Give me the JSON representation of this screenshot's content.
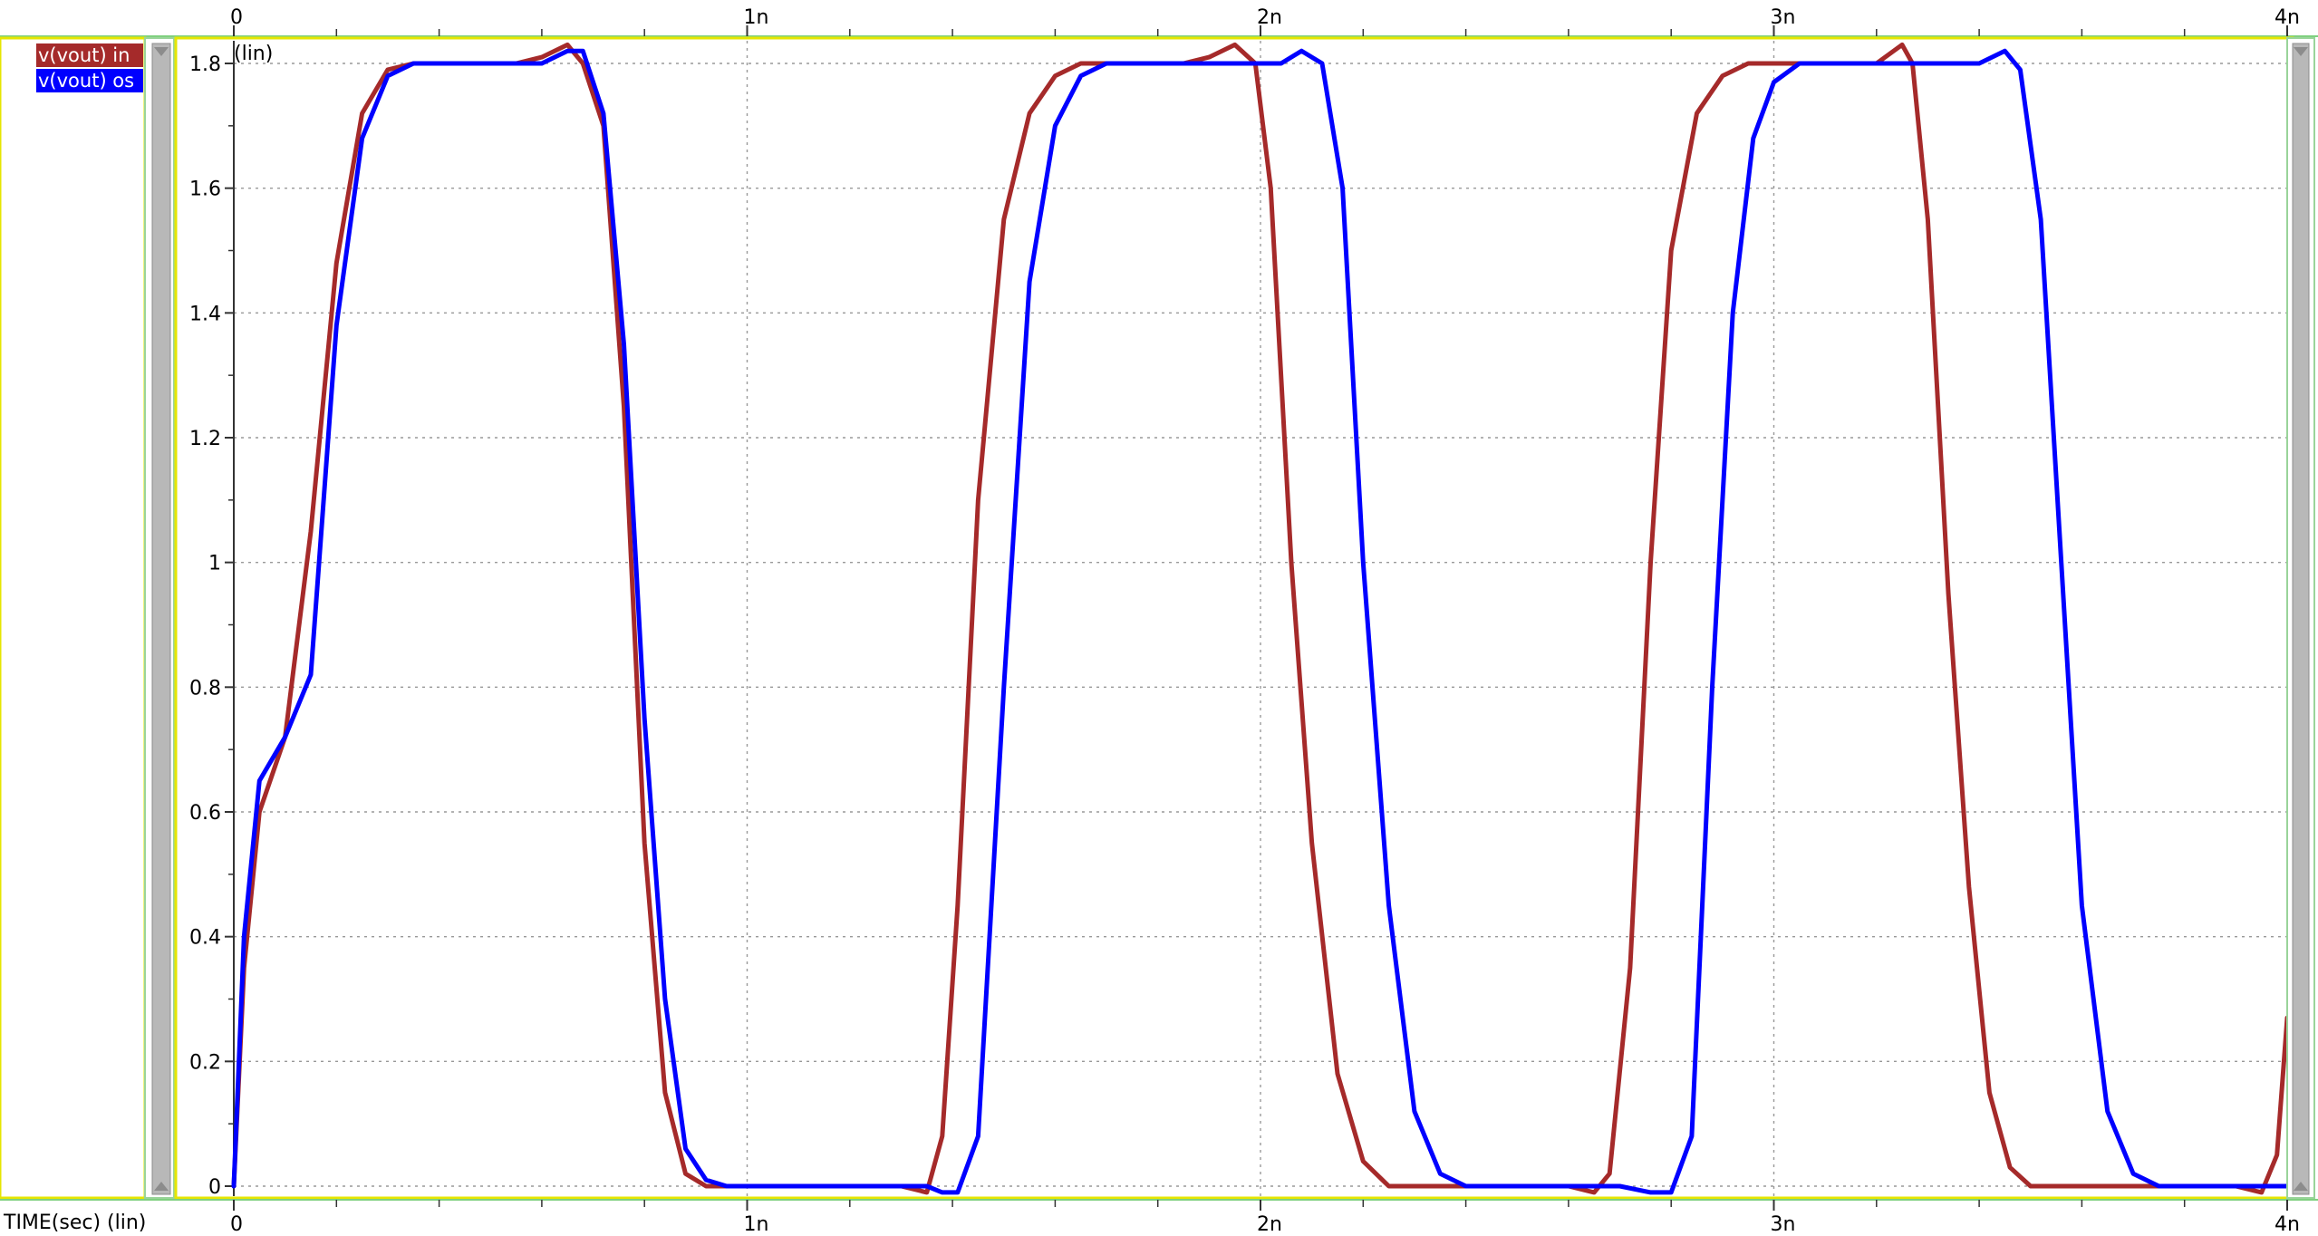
{
  "chart_data": {
    "type": "line",
    "title": "",
    "x_axis_label": "TIME(sec) (lin)",
    "y_axis_label": "(lin)",
    "x_tick_labels": [
      "0",
      "1n",
      "2n",
      "3n",
      "4n"
    ],
    "x_ticks": [
      0,
      1,
      2,
      3,
      4
    ],
    "x_unit": "ns",
    "y_tick_labels": [
      "0",
      "0.2",
      "0.4",
      "0.6",
      "0.8",
      "1",
      "1.2",
      "1.4",
      "1.6",
      "1.8"
    ],
    "y_ticks": [
      0,
      0.2,
      0.4,
      0.6,
      0.8,
      1.0,
      1.2,
      1.4,
      1.6,
      1.8
    ],
    "xlim": [
      -0.01,
      4.02
    ],
    "ylim": [
      -0.03,
      1.86
    ],
    "grid": true,
    "legend_position": "top-left panel",
    "series": [
      {
        "name": "v(vout) in",
        "color": "#a52a2a",
        "x": [
          0,
          0.02,
          0.05,
          0.1,
          0.15,
          0.2,
          0.25,
          0.3,
          0.35,
          0.4,
          0.45,
          0.5,
          0.55,
          0.6,
          0.65,
          0.68,
          0.72,
          0.76,
          0.8,
          0.84,
          0.88,
          0.92,
          0.96,
          1.0,
          1.1,
          1.2,
          1.3,
          1.35,
          1.38,
          1.41,
          1.45,
          1.5,
          1.55,
          1.6,
          1.65,
          1.7,
          1.75,
          1.8,
          1.85,
          1.9,
          1.95,
          1.99,
          2.02,
          2.06,
          2.1,
          2.15,
          2.2,
          2.25,
          2.3,
          2.35,
          2.4,
          2.5,
          2.6,
          2.65,
          2.68,
          2.72,
          2.76,
          2.8,
          2.85,
          2.9,
          2.95,
          3.0,
          3.05,
          3.1,
          3.15,
          3.2,
          3.25,
          3.27,
          3.3,
          3.34,
          3.38,
          3.42,
          3.46,
          3.5,
          3.55,
          3.6,
          3.7,
          3.8,
          3.9,
          3.95,
          3.98,
          4.0
        ],
        "values": [
          0,
          0.35,
          0.6,
          0.72,
          1.05,
          1.48,
          1.72,
          1.79,
          1.8,
          1.8,
          1.8,
          1.8,
          1.8,
          1.81,
          1.83,
          1.8,
          1.7,
          1.25,
          0.55,
          0.15,
          0.02,
          0.0,
          0.0,
          0.0,
          0.0,
          0.0,
          0.0,
          -0.01,
          0.08,
          0.45,
          1.1,
          1.55,
          1.72,
          1.78,
          1.8,
          1.8,
          1.8,
          1.8,
          1.8,
          1.81,
          1.83,
          1.8,
          1.6,
          1.0,
          0.55,
          0.18,
          0.04,
          0.0,
          0.0,
          0.0,
          0.0,
          0.0,
          0.0,
          -0.01,
          0.02,
          0.35,
          1.0,
          1.5,
          1.72,
          1.78,
          1.8,
          1.8,
          1.8,
          1.8,
          1.8,
          1.8,
          1.83,
          1.8,
          1.55,
          0.95,
          0.48,
          0.15,
          0.03,
          0.0,
          0.0,
          0.0,
          0.0,
          0.0,
          0.0,
          -0.01,
          0.05,
          0.27
        ]
      },
      {
        "name": "v(vout) os",
        "color": "#0000ff",
        "x": [
          0,
          0.02,
          0.05,
          0.1,
          0.15,
          0.2,
          0.25,
          0.3,
          0.35,
          0.4,
          0.45,
          0.5,
          0.55,
          0.6,
          0.65,
          0.68,
          0.72,
          0.76,
          0.8,
          0.84,
          0.88,
          0.92,
          0.96,
          1.0,
          1.1,
          1.2,
          1.3,
          1.35,
          1.38,
          1.41,
          1.45,
          1.5,
          1.55,
          1.6,
          1.65,
          1.7,
          1.75,
          1.8,
          1.85,
          1.9,
          1.95,
          2.0,
          2.04,
          2.08,
          2.12,
          2.16,
          2.2,
          2.25,
          2.3,
          2.35,
          2.4,
          2.5,
          2.6,
          2.7,
          2.76,
          2.8,
          2.84,
          2.88,
          2.92,
          2.96,
          3.0,
          3.05,
          3.1,
          3.15,
          3.2,
          3.25,
          3.3,
          3.35,
          3.4,
          3.45,
          3.48,
          3.52,
          3.56,
          3.6,
          3.65,
          3.7,
          3.75,
          3.8,
          3.85,
          3.9,
          4.0
        ],
        "values": [
          0,
          0.4,
          0.65,
          0.72,
          0.82,
          1.38,
          1.68,
          1.78,
          1.8,
          1.8,
          1.8,
          1.8,
          1.8,
          1.8,
          1.82,
          1.82,
          1.72,
          1.35,
          0.75,
          0.3,
          0.06,
          0.01,
          0.0,
          0.0,
          0.0,
          0.0,
          0.0,
          0.0,
          -0.01,
          -0.01,
          0.08,
          0.8,
          1.45,
          1.7,
          1.78,
          1.8,
          1.8,
          1.8,
          1.8,
          1.8,
          1.8,
          1.8,
          1.8,
          1.82,
          1.8,
          1.6,
          1.0,
          0.45,
          0.12,
          0.02,
          0.0,
          0.0,
          0.0,
          0.0,
          -0.01,
          -0.01,
          0.08,
          0.8,
          1.4,
          1.68,
          1.77,
          1.8,
          1.8,
          1.8,
          1.8,
          1.8,
          1.8,
          1.8,
          1.8,
          1.82,
          1.79,
          1.55,
          1.0,
          0.45,
          0.12,
          0.02,
          0.0,
          0.0,
          0.0,
          0.0,
          0.0
        ]
      }
    ]
  }
}
